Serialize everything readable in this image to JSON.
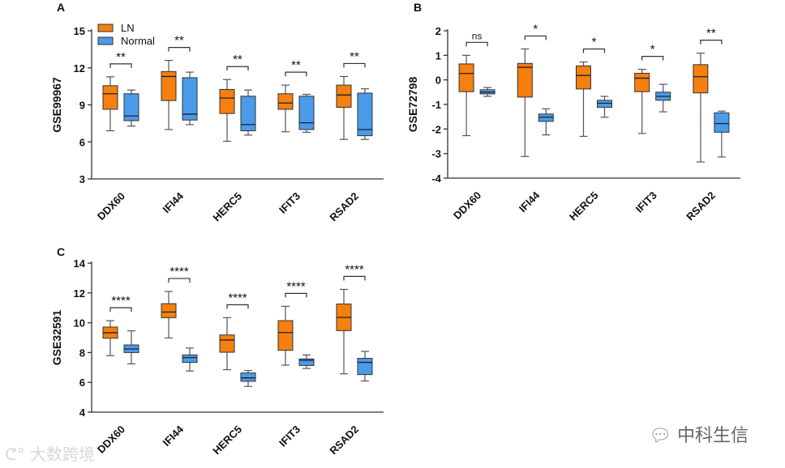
{
  "colors": {
    "ln": "#F57F0F",
    "normal": "#4A9BEA",
    "stroke": "#222222",
    "whisker": "#555555"
  },
  "legend": [
    {
      "key": "ln",
      "label": "LN"
    },
    {
      "key": "normal",
      "label": "Normal"
    }
  ],
  "watermarks": {
    "left": "大数跨境",
    "right": "中科生信"
  },
  "chart_data": [
    {
      "type": "box",
      "panel": "A",
      "ylabel": "GSE99967",
      "ylim": [
        3,
        15
      ],
      "yticks": [
        3,
        6,
        9,
        12,
        15
      ],
      "categories": [
        "DDX60",
        "IFI44",
        "HERC5",
        "IFIT3",
        "RSAD2"
      ],
      "significance": [
        "**",
        "**",
        "**",
        "**",
        "**"
      ],
      "legend_position": "top-left",
      "series": [
        {
          "name": "LN",
          "boxes": [
            {
              "min": 6.9,
              "q1": 8.64,
              "median": 9.9,
              "q3": 10.55,
              "max": 11.27
            },
            {
              "min": 7.0,
              "q1": 9.35,
              "median": 11.3,
              "q3": 11.7,
              "max": 12.6
            },
            {
              "min": 6.05,
              "q1": 8.3,
              "median": 9.55,
              "q3": 10.25,
              "max": 11.05
            },
            {
              "min": 6.82,
              "q1": 8.64,
              "median": 9.15,
              "q3": 9.9,
              "max": 10.6
            },
            {
              "min": 6.2,
              "q1": 8.8,
              "median": 9.8,
              "q3": 10.6,
              "max": 11.3
            }
          ]
        },
        {
          "name": "Normal",
          "boxes": [
            {
              "min": 7.28,
              "q1": 7.72,
              "median": 8.1,
              "q3": 9.9,
              "max": 10.2
            },
            {
              "min": 7.4,
              "q1": 7.77,
              "median": 8.25,
              "q3": 11.2,
              "max": 11.65
            },
            {
              "min": 6.55,
              "q1": 6.9,
              "median": 7.4,
              "q3": 9.7,
              "max": 10.2
            },
            {
              "min": 6.78,
              "q1": 7.0,
              "median": 7.55,
              "q3": 9.7,
              "max": 9.85
            },
            {
              "min": 6.2,
              "q1": 6.5,
              "median": 7.0,
              "q3": 9.95,
              "max": 10.3
            }
          ]
        }
      ]
    },
    {
      "type": "box",
      "panel": "B",
      "ylabel": "GSE72798",
      "ylim": [
        -4,
        2
      ],
      "yticks": [
        -4,
        -3,
        -2,
        -1,
        0,
        1,
        2
      ],
      "categories": [
        "DDX60",
        "IFI44",
        "HERC5",
        "IFIT3",
        "RSAD2"
      ],
      "significance": [
        "ns",
        "*",
        "*",
        "*",
        "**"
      ],
      "series": [
        {
          "name": "LN",
          "boxes": [
            {
              "min": -2.27,
              "q1": -0.48,
              "median": 0.26,
              "q3": 0.65,
              "max": 1.0
            },
            {
              "min": -3.12,
              "q1": -0.7,
              "median": 0.51,
              "q3": 0.67,
              "max": 1.26
            },
            {
              "min": -2.3,
              "q1": -0.37,
              "median": 0.18,
              "q3": 0.57,
              "max": 0.73
            },
            {
              "min": -2.18,
              "q1": -0.48,
              "median": 0.07,
              "q3": 0.27,
              "max": 0.43
            },
            {
              "min": -3.34,
              "q1": -0.53,
              "median": 0.13,
              "q3": 0.62,
              "max": 1.09
            }
          ]
        },
        {
          "name": "Normal",
          "boxes": [
            {
              "min": -0.67,
              "q1": -0.57,
              "median": -0.5,
              "q3": -0.4,
              "max": -0.31
            },
            {
              "min": -2.24,
              "q1": -1.69,
              "median": -1.52,
              "q3": -1.39,
              "max": -1.18
            },
            {
              "min": -1.52,
              "q1": -1.12,
              "median": -0.95,
              "q3": -0.83,
              "max": -0.67
            },
            {
              "min": -1.3,
              "q1": -0.83,
              "median": -0.67,
              "q3": -0.5,
              "max": -0.18
            },
            {
              "min": -3.14,
              "q1": -2.13,
              "median": -1.78,
              "q3": -1.34,
              "max": -1.27
            }
          ]
        }
      ]
    },
    {
      "type": "box",
      "panel": "C",
      "ylabel": "GSE32591",
      "ylim": [
        4,
        14
      ],
      "yticks": [
        4,
        6,
        8,
        10,
        12,
        14
      ],
      "categories": [
        "DDX60",
        "IFI44",
        "HERC5",
        "IFIT3",
        "RSAD2"
      ],
      "significance": [
        "****",
        "****",
        "****",
        "****",
        "****"
      ],
      "series": [
        {
          "name": "LN",
          "boxes": [
            {
              "min": 7.79,
              "q1": 8.96,
              "median": 9.33,
              "q3": 9.71,
              "max": 10.14
            },
            {
              "min": 8.98,
              "q1": 10.34,
              "median": 10.72,
              "q3": 11.28,
              "max": 12.1
            },
            {
              "min": 6.85,
              "q1": 8.02,
              "median": 8.84,
              "q3": 9.18,
              "max": 10.34
            },
            {
              "min": 7.15,
              "q1": 8.15,
              "median": 9.34,
              "q3": 10.14,
              "max": 11.1
            },
            {
              "min": 6.57,
              "q1": 9.47,
              "median": 10.36,
              "q3": 11.26,
              "max": 12.24
            }
          ]
        },
        {
          "name": "Normal",
          "boxes": [
            {
              "min": 7.24,
              "q1": 8.0,
              "median": 8.24,
              "q3": 8.51,
              "max": 9.46
            },
            {
              "min": 6.76,
              "q1": 7.34,
              "median": 7.66,
              "q3": 7.84,
              "max": 8.3
            },
            {
              "min": 5.73,
              "q1": 6.07,
              "median": 6.3,
              "q3": 6.63,
              "max": 6.79
            },
            {
              "min": 6.93,
              "q1": 7.13,
              "median": 7.48,
              "q3": 7.57,
              "max": 7.84
            },
            {
              "min": 6.09,
              "q1": 6.52,
              "median": 7.34,
              "q3": 7.61,
              "max": 8.08
            }
          ]
        }
      ]
    }
  ]
}
